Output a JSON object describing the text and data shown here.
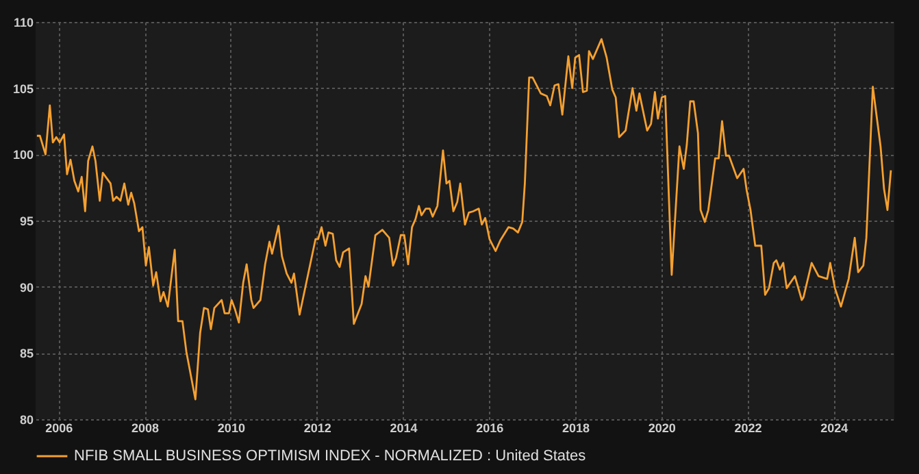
{
  "chart_data": {
    "type": "line",
    "x": [
      2005.5,
      2005.57,
      2005.7,
      2005.8,
      2005.87,
      2005.95,
      2006.03,
      2006.13,
      2006.2,
      2006.28,
      2006.37,
      2006.46,
      2006.54,
      2006.62,
      2006.69,
      2006.79,
      2006.86,
      2006.96,
      2007.03,
      2007.12,
      2007.21,
      2007.27,
      2007.35,
      2007.44,
      2007.53,
      2007.62,
      2007.69,
      2007.76,
      2007.87,
      2007.95,
      2008.03,
      2008.1,
      2008.2,
      2008.27,
      2008.37,
      2008.44,
      2008.54,
      2008.7,
      2008.78,
      2008.88,
      2008.97,
      2009.18,
      2009.29,
      2009.38,
      2009.47,
      2009.54,
      2009.62,
      2009.79,
      2009.86,
      2009.96,
      2010.02,
      2010.1,
      2010.19,
      2010.29,
      2010.37,
      2010.48,
      2010.53,
      2010.69,
      2010.8,
      2010.9,
      2010.96,
      2011.11,
      2011.19,
      2011.3,
      2011.41,
      2011.47,
      2011.6,
      2011.69,
      2011.97,
      2012.03,
      2012.11,
      2012.2,
      2012.27,
      2012.37,
      2012.45,
      2012.53,
      2012.61,
      2012.75,
      2012.86,
      2013.04,
      2013.13,
      2013.2,
      2013.36,
      2013.52,
      2013.68,
      2013.77,
      2013.84,
      2013.95,
      2014.03,
      2014.12,
      2014.21,
      2014.29,
      2014.37,
      2014.43,
      2014.53,
      2014.62,
      2014.69,
      2014.8,
      2014.93,
      2015.01,
      2015.08,
      2015.17,
      2015.26,
      2015.33,
      2015.44,
      2015.53,
      2015.63,
      2015.76,
      2015.83,
      2015.91,
      2016.01,
      2016.15,
      2016.26,
      2016.45,
      2016.56,
      2016.67,
      2016.77,
      2016.83,
      2016.93,
      2017.01,
      2017.2,
      2017.34,
      2017.42,
      2017.52,
      2017.61,
      2017.7,
      2017.84,
      2017.93,
      2018.0,
      2018.09,
      2018.18,
      2018.27,
      2018.32,
      2018.41,
      2018.61,
      2018.73,
      2018.86,
      2018.94,
      2019.02,
      2019.17,
      2019.33,
      2019.42,
      2019.49,
      2019.67,
      2019.76,
      2019.85,
      2019.92,
      2020.01,
      2020.09,
      2020.24,
      2020.42,
      2020.52,
      2020.59,
      2020.67,
      2020.75,
      2020.85,
      2020.91,
      2021.01,
      2021.09,
      2021.25,
      2021.33,
      2021.41,
      2021.5,
      2021.57,
      2021.76,
      2021.91,
      2021.98,
      2022.07,
      2022.18,
      2022.32,
      2022.41,
      2022.5,
      2022.61,
      2022.67,
      2022.75,
      2022.83,
      2022.91,
      2023.1,
      2023.26,
      2023.3,
      2023.49,
      2023.65,
      2023.85,
      2023.92,
      2024.03,
      2024.17,
      2024.35,
      2024.49,
      2024.57,
      2024.69,
      2024.76,
      2024.91,
      2025.09,
      2025.17,
      2025.25,
      2025.33
    ],
    "series": [
      {
        "name": "NFIB SMALL BUSINESS OPTIMISM INDEX - NORMALIZED : United States",
        "color": "#f5a030",
        "values": [
          101.4,
          101.4,
          100.0,
          103.7,
          100.9,
          101.3,
          100.9,
          101.5,
          98.5,
          99.6,
          98.0,
          97.2,
          98.3,
          95.7,
          99.5,
          100.6,
          99.5,
          96.5,
          98.6,
          98.2,
          97.8,
          96.5,
          96.8,
          96.5,
          97.8,
          96.2,
          97.1,
          96.3,
          94.2,
          94.5,
          91.6,
          93.0,
          90.1,
          91.1,
          88.9,
          89.6,
          88.5,
          92.8,
          87.4,
          87.4,
          85.1,
          81.5,
          86.5,
          88.4,
          88.3,
          86.8,
          88.4,
          89.0,
          88.0,
          88.0,
          89.0,
          88.3,
          87.3,
          90.3,
          91.7,
          89.0,
          88.4,
          89.0,
          91.7,
          93.4,
          92.5,
          94.6,
          92.3,
          91.0,
          90.3,
          91.0,
          87.9,
          89.3,
          93.6,
          93.6,
          94.5,
          93.1,
          94.1,
          94.0,
          92.0,
          91.5,
          92.6,
          92.9,
          87.2,
          88.7,
          90.8,
          90.0,
          93.9,
          94.3,
          93.7,
          91.6,
          92.2,
          93.9,
          93.9,
          91.7,
          94.5,
          95.1,
          96.1,
          95.4,
          95.9,
          95.9,
          95.3,
          96.1,
          100.3,
          97.8,
          98.0,
          95.7,
          96.4,
          97.8,
          94.7,
          95.6,
          95.7,
          95.9,
          94.7,
          95.2,
          93.6,
          92.7,
          93.5,
          94.5,
          94.4,
          94.1,
          94.9,
          97.8,
          105.8,
          105.8,
          104.6,
          104.4,
          103.7,
          105.2,
          105.3,
          103.0,
          107.4,
          105.0,
          107.3,
          107.5,
          104.7,
          104.8,
          107.8,
          107.2,
          108.7,
          107.3,
          104.9,
          104.3,
          101.3,
          101.8,
          105.0,
          103.3,
          104.6,
          101.8,
          102.3,
          104.7,
          102.7,
          104.3,
          104.4,
          90.9,
          100.6,
          98.9,
          100.7,
          104.0,
          104.0,
          101.6,
          95.8,
          94.9,
          95.8,
          99.7,
          99.7,
          102.5,
          99.9,
          99.9,
          98.2,
          98.9,
          97.3,
          95.8,
          93.1,
          93.1,
          89.4,
          89.9,
          91.8,
          92.0,
          91.3,
          91.8,
          89.9,
          90.8,
          89.0,
          89.2,
          91.8,
          90.8,
          90.6,
          91.8,
          89.9,
          88.5,
          90.6,
          93.7,
          91.1,
          91.6,
          93.7,
          105.1,
          100.6,
          97.4,
          95.8,
          98.8
        ]
      }
    ],
    "xlim": [
      2005.47,
      2025.41
    ],
    "xticks": [
      2006,
      2008,
      2010,
      2012,
      2014,
      2016,
      2018,
      2020,
      2022,
      2024
    ],
    "ylim": [
      80,
      110
    ],
    "yticks": [
      80,
      85,
      90,
      95,
      100,
      105,
      110
    ],
    "grid": true,
    "legend": "bottom",
    "marker": "none",
    "line_style": "solid"
  }
}
